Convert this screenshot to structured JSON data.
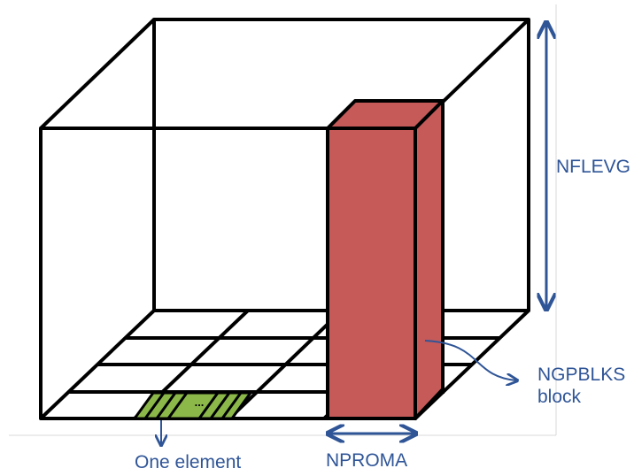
{
  "labels": {
    "nflevg": "NFLEVG",
    "ngpblks_line1": "NGPBLKS",
    "ngpblks_line2": "block",
    "nproma": "NPROMA",
    "one_element": "One element",
    "ellipsis": "..."
  },
  "colors": {
    "block_fill": "#C55A59",
    "element_fill": "#8CB84A",
    "arrow": "#2F5597",
    "outline": "#000000",
    "frame_line": "#D9D9D9"
  }
}
